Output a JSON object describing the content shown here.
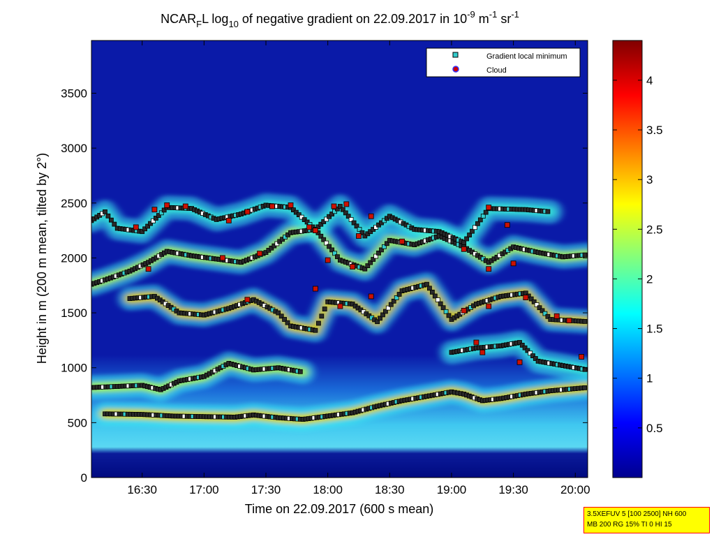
{
  "chart_data": {
    "type": "heatmap",
    "title": {
      "prefix": "NCAR",
      "prefix_sub": "F",
      "after_prefix": "L log",
      "log_sub": "10",
      "text": " of negative gradient on 22.09.2017 in 10",
      "exp1": "-9",
      "unit1": " m",
      "exp2": "-1",
      "unit2": " sr",
      "exp3": "-1"
    },
    "xlabel": "Time on 22.09.2017 (600 s mean)",
    "ylabel": "Height in m (200 m mean, tilted by 2°)",
    "x_ticks": [
      "16:30",
      "17:00",
      "17:30",
      "18:00",
      "18:30",
      "19:00",
      "19:30",
      "20:00"
    ],
    "x_tick_hours": [
      16.5,
      17.0,
      17.5,
      18.0,
      18.5,
      19.0,
      19.5,
      20.0
    ],
    "xlim_hours": [
      16.09,
      20.1
    ],
    "y_ticks": [
      0,
      500,
      1000,
      1500,
      2000,
      2500,
      3000,
      3500
    ],
    "ylim": [
      0,
      3980
    ],
    "colorbar": {
      "ticks": [
        "0.5",
        "1",
        "1.5",
        "2",
        "2.5",
        "3",
        "3.5",
        "4"
      ],
      "tick_values": [
        0.5,
        1,
        1.5,
        2,
        2.5,
        3,
        3.5,
        4
      ],
      "range": [
        0,
        4.4
      ],
      "colormap": "jet"
    },
    "legend": {
      "placement": "top-right",
      "entries": [
        {
          "label": "Gradient local minimum",
          "marker": "square",
          "color": "#33cccc"
        },
        {
          "label": "Cloud",
          "marker": "circle",
          "color": "#cc0000",
          "edge": "#3333ff"
        }
      ]
    },
    "layer_lines": [
      {
        "name": "L1",
        "points": [
          [
            16.2,
            580
          ],
          [
            16.5,
            575
          ],
          [
            16.75,
            560
          ],
          [
            17.0,
            555
          ],
          [
            17.25,
            550
          ],
          [
            17.4,
            570
          ],
          [
            17.6,
            545
          ],
          [
            17.8,
            530
          ],
          [
            18.0,
            560
          ],
          [
            18.2,
            590
          ],
          [
            18.4,
            650
          ],
          [
            18.6,
            700
          ],
          [
            18.8,
            740
          ],
          [
            19.0,
            780
          ],
          [
            19.1,
            760
          ],
          [
            19.25,
            700
          ],
          [
            19.4,
            720
          ],
          [
            19.6,
            760
          ],
          [
            19.8,
            790
          ],
          [
            20.0,
            810
          ],
          [
            20.1,
            820
          ]
        ]
      },
      {
        "name": "L2",
        "points": [
          [
            16.09,
            820
          ],
          [
            16.3,
            830
          ],
          [
            16.5,
            840
          ],
          [
            16.65,
            800
          ],
          [
            16.8,
            880
          ],
          [
            17.0,
            920
          ],
          [
            17.2,
            1040
          ],
          [
            17.4,
            980
          ],
          [
            17.6,
            1000
          ],
          [
            17.8,
            960
          ]
        ]
      },
      {
        "name": "L3",
        "points": [
          [
            19.0,
            1140
          ],
          [
            19.2,
            1180
          ],
          [
            19.4,
            1200
          ],
          [
            19.55,
            1230
          ],
          [
            19.7,
            1060
          ],
          [
            19.9,
            1020
          ],
          [
            20.1,
            980
          ]
        ]
      },
      {
        "name": "L4",
        "points": [
          [
            16.4,
            1630
          ],
          [
            16.6,
            1650
          ],
          [
            16.8,
            1500
          ],
          [
            17.0,
            1480
          ],
          [
            17.2,
            1540
          ],
          [
            17.4,
            1620
          ],
          [
            17.6,
            1500
          ],
          [
            17.7,
            1380
          ],
          [
            17.9,
            1340
          ],
          [
            18.0,
            1600
          ],
          [
            18.2,
            1580
          ],
          [
            18.4,
            1420
          ],
          [
            18.6,
            1700
          ],
          [
            18.8,
            1760
          ],
          [
            19.0,
            1440
          ],
          [
            19.2,
            1580
          ],
          [
            19.4,
            1650
          ],
          [
            19.6,
            1680
          ],
          [
            19.8,
            1440
          ],
          [
            20.1,
            1420
          ]
        ]
      },
      {
        "name": "L5",
        "points": [
          [
            16.09,
            1760
          ],
          [
            16.2,
            1800
          ],
          [
            16.4,
            1880
          ],
          [
            16.55,
            1960
          ],
          [
            16.7,
            2060
          ],
          [
            16.9,
            2020
          ],
          [
            17.1,
            1990
          ],
          [
            17.3,
            1960
          ],
          [
            17.5,
            2050
          ],
          [
            17.7,
            2230
          ],
          [
            17.9,
            2260
          ],
          [
            18.1,
            1980
          ],
          [
            18.3,
            1900
          ],
          [
            18.5,
            2160
          ],
          [
            18.7,
            2120
          ],
          [
            18.9,
            2200
          ],
          [
            19.1,
            2100
          ],
          [
            19.3,
            1960
          ],
          [
            19.5,
            2100
          ],
          [
            19.7,
            2050
          ],
          [
            19.9,
            2010
          ],
          [
            20.1,
            2030
          ]
        ]
      },
      {
        "name": "L6",
        "points": [
          [
            16.09,
            2340
          ],
          [
            16.2,
            2420
          ],
          [
            16.3,
            2270
          ],
          [
            16.5,
            2240
          ],
          [
            16.7,
            2460
          ],
          [
            16.9,
            2450
          ],
          [
            17.1,
            2350
          ],
          [
            17.3,
            2400
          ],
          [
            17.5,
            2480
          ],
          [
            17.7,
            2460
          ],
          [
            17.9,
            2260
          ],
          [
            18.1,
            2470
          ],
          [
            18.3,
            2200
          ],
          [
            18.5,
            2380
          ],
          [
            18.7,
            2260
          ],
          [
            18.9,
            2240
          ],
          [
            19.1,
            2140
          ],
          [
            19.3,
            2450
          ],
          [
            19.6,
            2440
          ],
          [
            19.8,
            2420
          ]
        ]
      }
    ],
    "clouds": [
      [
        16.45,
        2280
      ],
      [
        16.6,
        2440
      ],
      [
        16.7,
        2480
      ],
      [
        16.85,
        2470
      ],
      [
        17.2,
        2340
      ],
      [
        17.35,
        2420
      ],
      [
        17.55,
        2470
      ],
      [
        17.7,
        2480
      ],
      [
        17.9,
        2250
      ],
      [
        18.05,
        2470
      ],
      [
        18.15,
        2490
      ],
      [
        18.25,
        2200
      ],
      [
        18.35,
        2380
      ],
      [
        18.6,
        2150
      ],
      [
        19.3,
        2460
      ],
      [
        19.45,
        2300
      ],
      [
        16.55,
        1900
      ],
      [
        17.15,
        2000
      ],
      [
        17.45,
        2040
      ],
      [
        17.85,
        2280
      ],
      [
        18.0,
        1980
      ],
      [
        18.2,
        1920
      ],
      [
        19.1,
        2080
      ],
      [
        19.3,
        1900
      ],
      [
        19.5,
        1950
      ],
      [
        17.35,
        1620
      ],
      [
        17.9,
        1720
      ],
      [
        18.1,
        1560
      ],
      [
        18.35,
        1650
      ],
      [
        19.1,
        1520
      ],
      [
        19.3,
        1560
      ],
      [
        19.6,
        1640
      ],
      [
        19.85,
        1470
      ],
      [
        19.95,
        1430
      ],
      [
        19.2,
        1230
      ],
      [
        19.25,
        1140
      ],
      [
        19.55,
        1050
      ],
      [
        20.05,
        1100
      ]
    ]
  },
  "settings_box": {
    "line1": "3.5XEFUV 5 [100 2500] NH 600",
    "line2": "MB 200 RG 15% TI 0 HI 15"
  }
}
